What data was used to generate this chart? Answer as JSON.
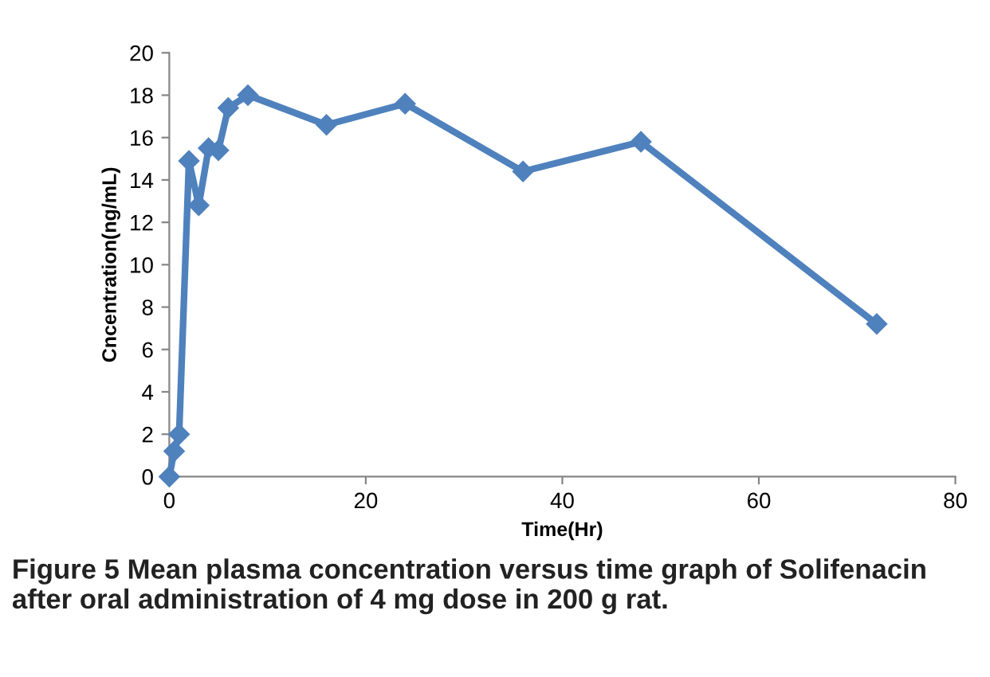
{
  "chart_data": {
    "type": "line",
    "xlabel": "Time(Hr)",
    "ylabel": "Cncentration(ng/mL)",
    "x": [
      0,
      0.5,
      1,
      2,
      3,
      4,
      5,
      6,
      8,
      16,
      24,
      36,
      48,
      72
    ],
    "series": [
      {
        "color": "#4f81bd",
        "values": [
          0,
          1.2,
          2,
          14.9,
          12.8,
          15.5,
          15.4,
          17.4,
          18,
          16.6,
          17.6,
          14.4,
          15.8,
          7.2
        ]
      }
    ],
    "xlim": [
      0,
      80
    ],
    "xticks": [
      0,
      20,
      40,
      60,
      80
    ],
    "ylim": [
      0,
      20
    ],
    "yticks": [
      0,
      2,
      4,
      6,
      8,
      10,
      12,
      14,
      16,
      18,
      20
    ],
    "marker": "diamond",
    "line_style": "solid",
    "grid": false,
    "legend": false,
    "annotations": [
      "Figure 5 Mean plasma concentration versus time graph of Solifenacin after oral administration of 4 mg dose in 200 g rat."
    ]
  }
}
